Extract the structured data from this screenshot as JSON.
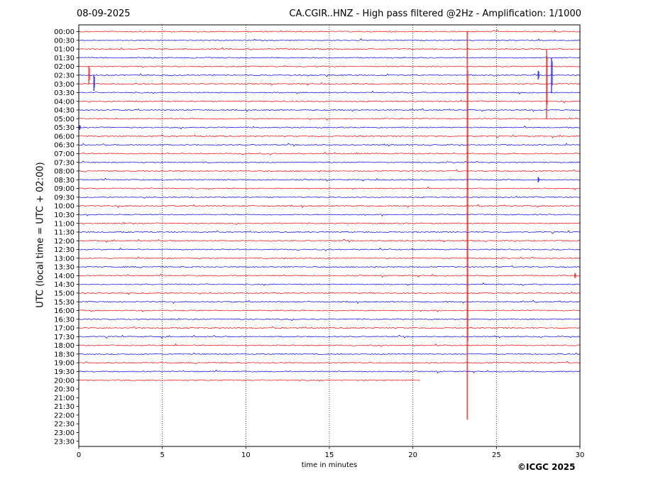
{
  "header": {
    "date": "08-09-2025",
    "title": "CA.CGIR..HNZ - High pass filtered @2Hz - Amplification: 1/1000"
  },
  "footer": {
    "credit": "©ICGC 2025"
  },
  "colors": {
    "red": "#ff0000",
    "blue": "#0000ff",
    "axis": "#000000"
  },
  "chart_data": {
    "type": "line",
    "title": "CA.CGIR..HNZ - High pass filtered @2Hz - Amplification: 1/1000",
    "xlabel": "time in minutes",
    "ylabel": "UTC (local time = UTC + 02:00)",
    "xlim": [
      0,
      30
    ],
    "xticks": [
      0,
      5,
      10,
      15,
      20,
      25,
      30
    ],
    "vertical_gridlines": [
      5,
      10,
      15,
      20,
      25
    ],
    "rows": [
      "00:00",
      "00:30",
      "01:00",
      "01:30",
      "02:00",
      "02:30",
      "03:00",
      "03:30",
      "04:00",
      "04:30",
      "05:00",
      "05:30",
      "06:00",
      "06:30",
      "07:00",
      "07:30",
      "08:00",
      "08:30",
      "09:00",
      "09:30",
      "10:00",
      "10:30",
      "11:00",
      "11:30",
      "12:00",
      "12:30",
      "13:00",
      "13:30",
      "14:00",
      "14:30",
      "15:00",
      "15:30",
      "16:00",
      "16:30",
      "17:00",
      "17:30",
      "18:00",
      "18:30",
      "19:00",
      "19:30",
      "20:00",
      "20:30",
      "21:00",
      "21:30",
      "22:00",
      "22:30",
      "23:00",
      "23:30"
    ],
    "row_colors": "alternating red / blue starting with red",
    "data_until": {
      "row": "20:00",
      "minute": 20.4
    },
    "events": [
      {
        "row": "02:00",
        "minute": 0.6,
        "amplitude_rows": 2.0,
        "direction": "down"
      },
      {
        "row": "02:30",
        "minute": 0.9,
        "amplitude_rows": 1.8,
        "direction": "down"
      },
      {
        "row": "00:00",
        "minute": 23.25,
        "amplitude_rows": 44.5,
        "direction": "down"
      },
      {
        "row": "01:00",
        "minute": 28.0,
        "amplitude_rows": 8.0,
        "direction": "down"
      },
      {
        "row": "02:30",
        "minute": 27.5,
        "amplitude_rows": 1.0,
        "direction": "both"
      },
      {
        "row": "02:30",
        "minute": 28.3,
        "amplitude_rows": 4.0,
        "direction": "both"
      },
      {
        "row": "05:30",
        "minute": 0.05,
        "amplitude_rows": 0.5,
        "direction": "both"
      },
      {
        "row": "08:30",
        "minute": 27.5,
        "amplitude_rows": 0.6,
        "direction": "both"
      },
      {
        "row": "14:00",
        "minute": 29.7,
        "amplitude_rows": 0.6,
        "direction": "both"
      }
    ]
  }
}
